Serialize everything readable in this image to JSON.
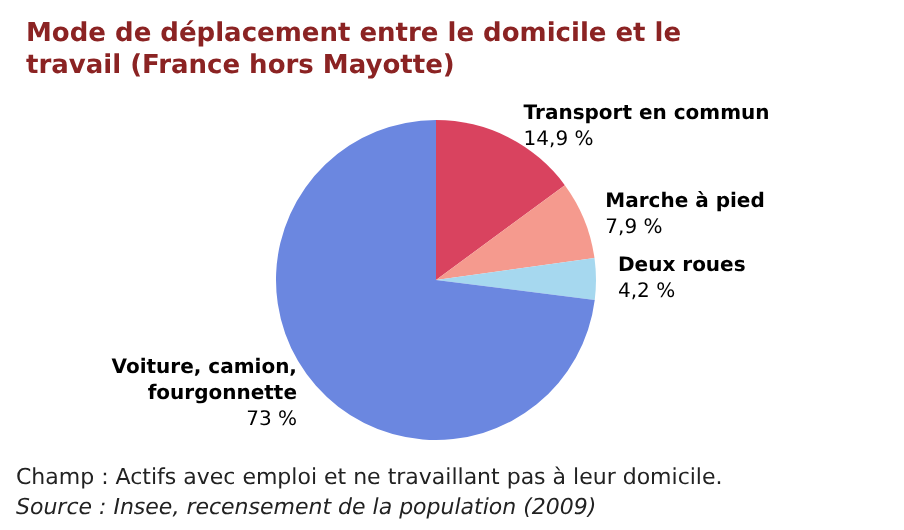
{
  "chart_data": {
    "type": "pie",
    "title": "Mode de déplacement entre le domicile et le travail (France hors Mayotte)",
    "categories": [
      "Transport en commun",
      "Marche à pied",
      "Deux roues",
      "Voiture, camion, fourgonnette"
    ],
    "values": [
      14.9,
      7.9,
      4.2,
      73
    ],
    "value_labels": [
      "14,9 %",
      "7,9 %",
      "4,2 %",
      "73 %"
    ],
    "colors": [
      "#d9435f",
      "#f59a8e",
      "#a6d8ef",
      "#6b87e0"
    ],
    "annotations": [
      "Champ : Actifs avec emploi et ne travaillant pas à leur domicile.",
      "Source : Insee, recensement de la population (2009)"
    ]
  }
}
